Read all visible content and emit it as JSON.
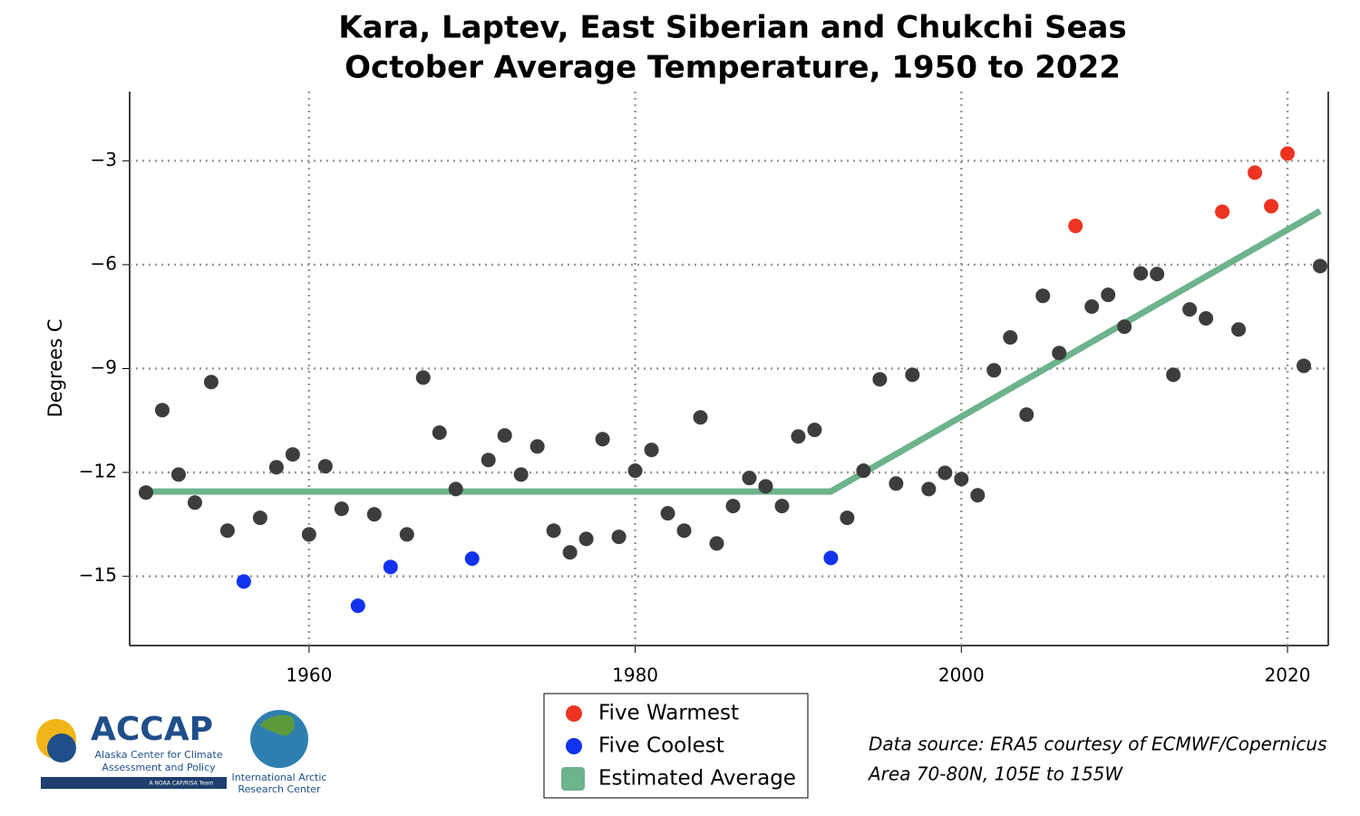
{
  "chart_data": {
    "type": "scatter",
    "title": [
      "Kara, Laptev, East Siberian and Chukchi Seas",
      "October Average Temperature, 1950 to 2022"
    ],
    "ylabel": "Degrees C",
    "xlim": [
      1949,
      2022.5
    ],
    "ylim": [
      -17,
      -1
    ],
    "xticks": [
      1960,
      1980,
      2000,
      2020
    ],
    "yticks": [
      {
        "value": -15,
        "label": "−15"
      },
      {
        "value": -12,
        "label": "−12"
      },
      {
        "value": -9,
        "label": "−9"
      },
      {
        "value": -6,
        "label": "−6"
      },
      {
        "value": -3,
        "label": "−3"
      }
    ],
    "grid": true,
    "series": [
      {
        "color": "#3d3d3d",
        "x": [
          1950,
          1951,
          1952,
          1953,
          1954,
          1955,
          1957,
          1958,
          1959,
          1960,
          1961,
          1962,
          1964,
          1966,
          1967,
          1968,
          1969,
          1971,
          1972,
          1973,
          1974,
          1975,
          1976,
          1977,
          1978,
          1979,
          1980,
          1981,
          1982,
          1983,
          1984,
          1985,
          1986,
          1987,
          1988,
          1989,
          1990,
          1991,
          1993,
          1994,
          1995,
          1996,
          1997,
          1998,
          1999,
          2000,
          2001,
          2002,
          2003,
          2004,
          2005,
          2006,
          2008,
          2009,
          2010,
          2011,
          2012,
          2013,
          2014,
          2015,
          2017,
          2021,
          2022
        ],
        "values": [
          -12.58,
          -10.2,
          -12.06,
          -12.87,
          -9.39,
          -13.68,
          -13.31,
          -11.85,
          -11.48,
          -13.79,
          -11.82,
          -13.05,
          -13.21,
          -13.79,
          -9.26,
          -10.85,
          -12.48,
          -11.64,
          -10.93,
          -12.06,
          -11.25,
          -13.68,
          -14.31,
          -13.92,
          -11.04,
          -13.86,
          -11.95,
          -11.35,
          -13.18,
          -13.68,
          -10.41,
          -14.05,
          -12.97,
          -12.16,
          -12.4,
          -12.97,
          -10.96,
          -10.77,
          -13.31,
          -11.95,
          -9.31,
          -12.32,
          -9.18,
          -12.48,
          -12.01,
          -12.19,
          -12.66,
          -9.05,
          -8.1,
          -10.33,
          -6.9,
          -8.55,
          -7.21,
          -6.87,
          -7.79,
          -6.25,
          -6.27,
          -9.18,
          -7.29,
          -7.55,
          -7.87,
          -8.92,
          -6.04
        ]
      },
      {
        "name": "Five Warmest",
        "color": "#ee3322",
        "x": [
          2007,
          2016,
          2018,
          2019,
          2020
        ],
        "values": [
          -4.88,
          -4.47,
          -3.34,
          -4.31,
          -2.79
        ]
      },
      {
        "name": "Five Coolest",
        "color": "#1133ee",
        "x": [
          1956,
          1963,
          1965,
          1970,
          1992
        ],
        "values": [
          -15.15,
          -15.85,
          -14.73,
          -14.49,
          -14.47
        ]
      },
      {
        "name": "Estimated Average",
        "type": "line",
        "color": "#6db38c",
        "x": [
          1950,
          1992,
          2022
        ],
        "values": [
          -12.55,
          -12.55,
          -4.45
        ]
      }
    ],
    "source": [
      "Data source: ERA5 courtesy of ECMWF/Copernicus",
      "Area 70-80N, 105E to 155W"
    ],
    "logos": {
      "accap": "ACCAP",
      "accap_lines": [
        "Alaska Center for Climate",
        "Assessment and Policy"
      ],
      "accap_tag": "A NOAA CAP/RISA Team",
      "iarc": [
        "International Arctic",
        "Research Center"
      ]
    }
  }
}
